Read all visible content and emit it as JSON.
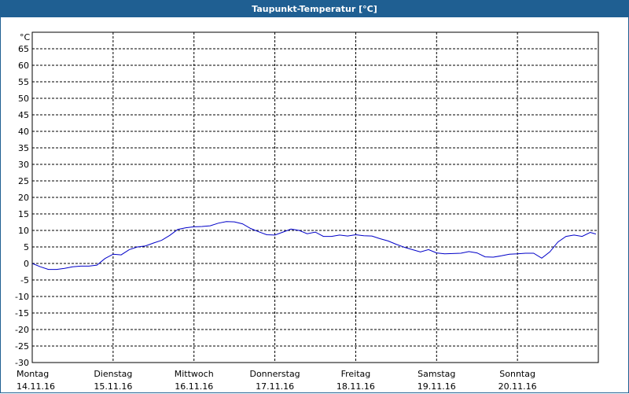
{
  "window": {
    "title": "Taupunkt-Temperatur [°C]"
  },
  "chart_data": {
    "type": "line",
    "title": "Taupunkt-Temperatur [°C]",
    "ylabel": "°C",
    "xlabel": "",
    "ylim": [
      -30,
      70
    ],
    "yticks": [
      65,
      60,
      55,
      50,
      45,
      40,
      35,
      30,
      25,
      20,
      15,
      10,
      5,
      0,
      -5,
      -10,
      -15,
      -20,
      -25,
      -30
    ],
    "xlim": [
      0,
      7
    ],
    "grid": true,
    "line_color": "#0000c8",
    "x_labels": [
      {
        "day": "Montag",
        "date": "14.11.16",
        "x": 0
      },
      {
        "day": "Dienstag",
        "date": "15.11.16",
        "x": 1
      },
      {
        "day": "Mittwoch",
        "date": "16.11.16",
        "x": 2
      },
      {
        "day": "Donnerstag",
        "date": "17.11.16",
        "x": 3
      },
      {
        "day": "Freitag",
        "date": "18.11.16",
        "x": 4
      },
      {
        "day": "Samstag",
        "date": "19.11.16",
        "x": 5
      },
      {
        "day": "Sonntag",
        "date": "20.11.16",
        "x": 6
      }
    ],
    "series": [
      {
        "x": [
          0,
          0.1,
          0.2,
          0.3,
          0.4,
          0.5,
          0.6,
          0.7,
          0.8,
          0.9,
          1.0,
          1.1,
          1.2,
          1.3,
          1.4,
          1.5,
          1.6,
          1.7,
          1.8,
          1.9,
          2.0,
          2.1,
          2.2,
          2.3,
          2.4,
          2.5,
          2.6,
          2.7,
          2.8,
          2.9,
          3.0,
          3.1,
          3.2,
          3.3,
          3.4,
          3.5,
          3.6,
          3.7,
          3.8,
          3.9,
          4.0,
          4.1,
          4.2,
          4.3,
          4.4,
          4.5,
          4.6,
          4.7,
          4.8,
          4.9,
          5.0,
          5.1,
          5.2,
          5.3,
          5.4,
          5.5,
          5.6,
          5.7,
          5.8,
          5.9,
          6.0,
          6.1,
          6.2,
          6.3,
          6.4,
          6.5,
          6.6,
          6.7,
          6.8,
          6.9,
          6.97
        ],
        "values": [
          0,
          -1,
          -1.8,
          -1.8,
          -1.5,
          -1,
          -0.8,
          -0.8,
          -0.5,
          1.5,
          2.8,
          2.6,
          4.2,
          5,
          5.3,
          6.2,
          7,
          8.5,
          10.3,
          10.8,
          11.1,
          11.2,
          11.4,
          12.2,
          12.7,
          12.6,
          12,
          10.6,
          9.6,
          8.7,
          8.6,
          9.5,
          10.4,
          10,
          9,
          9.5,
          8.2,
          8.2,
          8.6,
          8.3,
          8.7,
          8.4,
          8.3,
          7.5,
          6.8,
          5.8,
          4.9,
          4.2,
          3.5,
          4.2,
          3.2,
          2.9,
          3,
          3.1,
          3.6,
          3.2,
          2,
          1.9,
          2.3,
          2.8,
          2.9,
          3.1,
          3.1,
          1.6,
          3.5,
          6.5,
          8.2,
          8.6,
          8.2,
          9.4,
          8.9
        ]
      }
    ]
  }
}
